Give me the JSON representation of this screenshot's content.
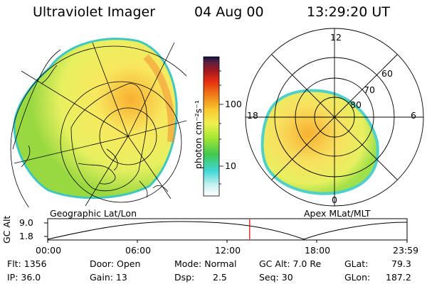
{
  "header": {
    "instrument": "Ultraviolet Imager",
    "date": "04 Aug 00",
    "time": "13:29:20 UT"
  },
  "colorbar": {
    "unit_label": "photon cm⁻²s⁻¹",
    "tick_100": "100",
    "tick_10": "10",
    "colors": [
      "#ffffff",
      "#c8f0f0",
      "#40d8d8",
      "#40c850",
      "#a8e830",
      "#f0f050",
      "#f8c830",
      "#f08018",
      "#e83010",
      "#a01820",
      "#602040",
      "#101040"
    ]
  },
  "geo_map": {
    "caption": "Geographic Lat/Lon"
  },
  "polar_plot": {
    "caption": "Apex MLat/MLT",
    "mlt_12": "12",
    "mlt_18": "18",
    "mlt_6": "6",
    "mlt_0": "0",
    "lat_60": "60",
    "lat_70": "70",
    "lat_80": "80"
  },
  "altitude_plot": {
    "ylabel": "GC Alt",
    "y_top": "9.0",
    "y_bottom": "1.8",
    "x_ticks": [
      "00:00",
      "06:00",
      "12:00",
      "18:00",
      "23:59"
    ],
    "current_time_hours": 13.49,
    "marker_color": "#e00000"
  },
  "status": {
    "flt": "Flt: 1356",
    "ip": "IP: 36.0",
    "door": "Door: Open",
    "gain": "Gain: 13",
    "mode": "Mode: Normal",
    "dsp_label": "Dsp:",
    "dsp_value": "2.5",
    "gc_alt": "GC Alt: 7.0 Re",
    "seq": "Seq: 30",
    "glat_label": "GLat:",
    "glat_value": "79.3",
    "glon_label": "GLon:",
    "glon_value": "187.2"
  }
}
